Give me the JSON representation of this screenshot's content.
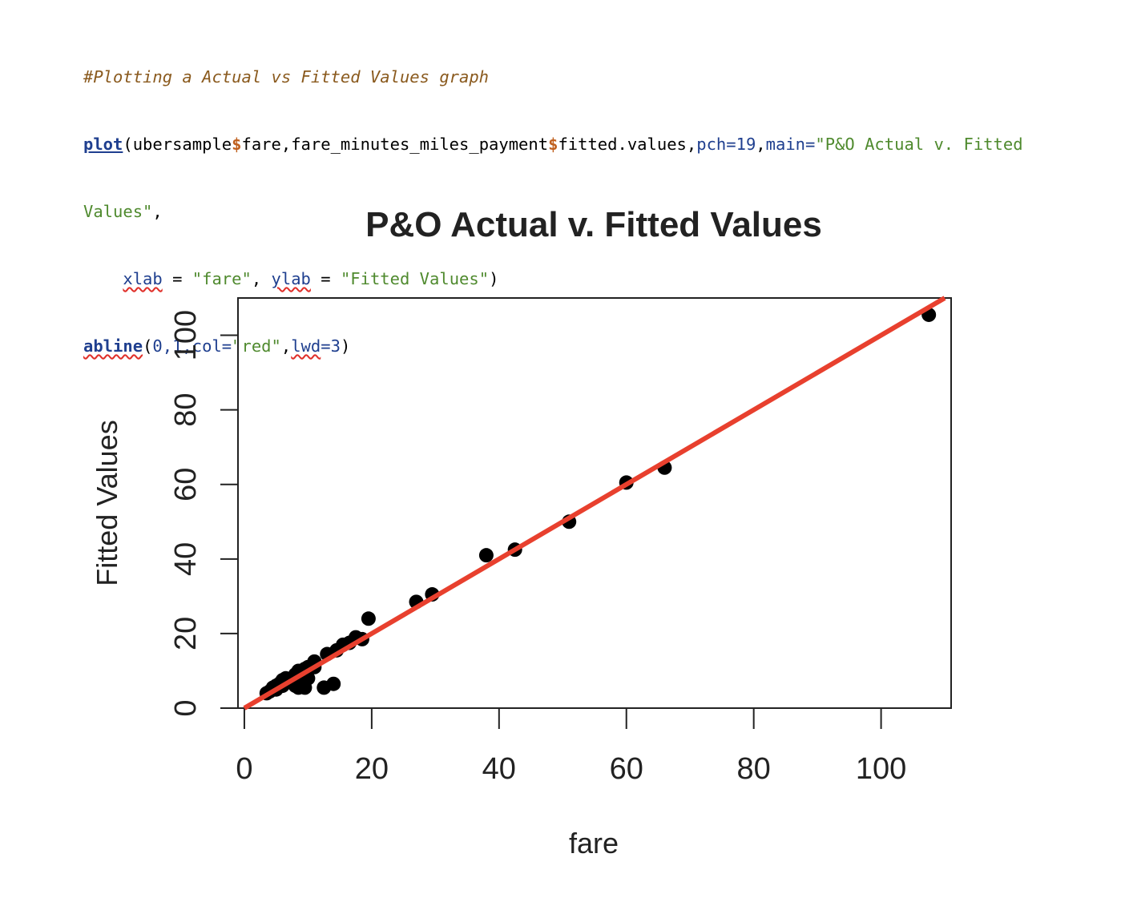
{
  "code": {
    "comment": "#Plotting a Actual vs Fitted Values graph",
    "line2": {
      "fn": "plot",
      "open": "(",
      "obj1": "ubersample",
      "dollar1": "$",
      "field1": "fare,fare_minutes_miles_payment",
      "dollar2": "$",
      "field2": "fitted.values,",
      "pch_arg": "pch=",
      "pch_val": "19",
      "comma1": ",",
      "main_arg": "main=",
      "main_str1": "\"P&O Actual v. Fitted"
    },
    "line3": {
      "main_str2": "Values\"",
      "comma": ","
    },
    "line4": {
      "indent": "    ",
      "xlab_arg": "xlab",
      "eq1": " = ",
      "xlab_str": "\"fare\"",
      "comma": ", ",
      "ylab_arg": "ylab",
      "eq2": " = ",
      "ylab_str": "\"Fitted Values\"",
      "close": ")"
    },
    "line5": {
      "fn": "abline",
      "open": "(",
      "args_num": "0,1,",
      "col_arg": "col=",
      "col_str": "\"red\"",
      "comma": ",",
      "lwd_arg": "lwd",
      "lwd_val": "=3",
      "close": ")"
    }
  },
  "chart_data": {
    "type": "scatter",
    "title": "P&O Actual v. Fitted Values",
    "xlabel": "fare",
    "ylabel": "Fitted Values",
    "xlim": [
      -1,
      111
    ],
    "ylim": [
      0,
      110
    ],
    "x_ticks": [
      0,
      20,
      40,
      60,
      80,
      100
    ],
    "y_ticks": [
      0,
      20,
      40,
      60,
      80,
      100
    ],
    "x_tick_labels": [
      "0",
      "20",
      "40",
      "60",
      "80",
      "100"
    ],
    "y_tick_labels": [
      "0",
      "20",
      "40",
      "60",
      "80",
      "100"
    ],
    "point_color": "#000000",
    "line_color": "#e8402e",
    "reference_line": {
      "intercept": 0,
      "slope": 1
    },
    "points": [
      [
        3.5,
        4.0
      ],
      [
        4.0,
        4.5
      ],
      [
        4.5,
        5.5
      ],
      [
        5.0,
        5.0
      ],
      [
        5.0,
        6.0
      ],
      [
        5.5,
        6.5
      ],
      [
        6.0,
        6.0
      ],
      [
        6.0,
        7.5
      ],
      [
        6.5,
        8.0
      ],
      [
        7.0,
        7.0
      ],
      [
        7.5,
        8.0
      ],
      [
        8.0,
        9.0
      ],
      [
        8.0,
        6.0
      ],
      [
        8.5,
        10.0
      ],
      [
        9.0,
        9.0
      ],
      [
        9.5,
        10.5
      ],
      [
        10.0,
        8.0
      ],
      [
        10.0,
        11.0
      ],
      [
        11.0,
        11.0
      ],
      [
        11.0,
        12.5
      ],
      [
        8.5,
        5.5
      ],
      [
        9.5,
        5.5
      ],
      [
        12.5,
        5.5
      ],
      [
        14.0,
        6.5
      ],
      [
        13.0,
        14.5
      ],
      [
        14.5,
        15.5
      ],
      [
        15.5,
        17.0
      ],
      [
        16.5,
        17.5
      ],
      [
        17.5,
        19.0
      ],
      [
        18.5,
        18.5
      ],
      [
        19.5,
        24.0
      ],
      [
        27.0,
        28.5
      ],
      [
        29.5,
        30.5
      ],
      [
        38.0,
        41.0
      ],
      [
        42.5,
        42.5
      ],
      [
        51.0,
        50.0
      ],
      [
        60.0,
        60.5
      ],
      [
        66.0,
        64.5
      ],
      [
        107.5,
        105.5
      ]
    ]
  }
}
